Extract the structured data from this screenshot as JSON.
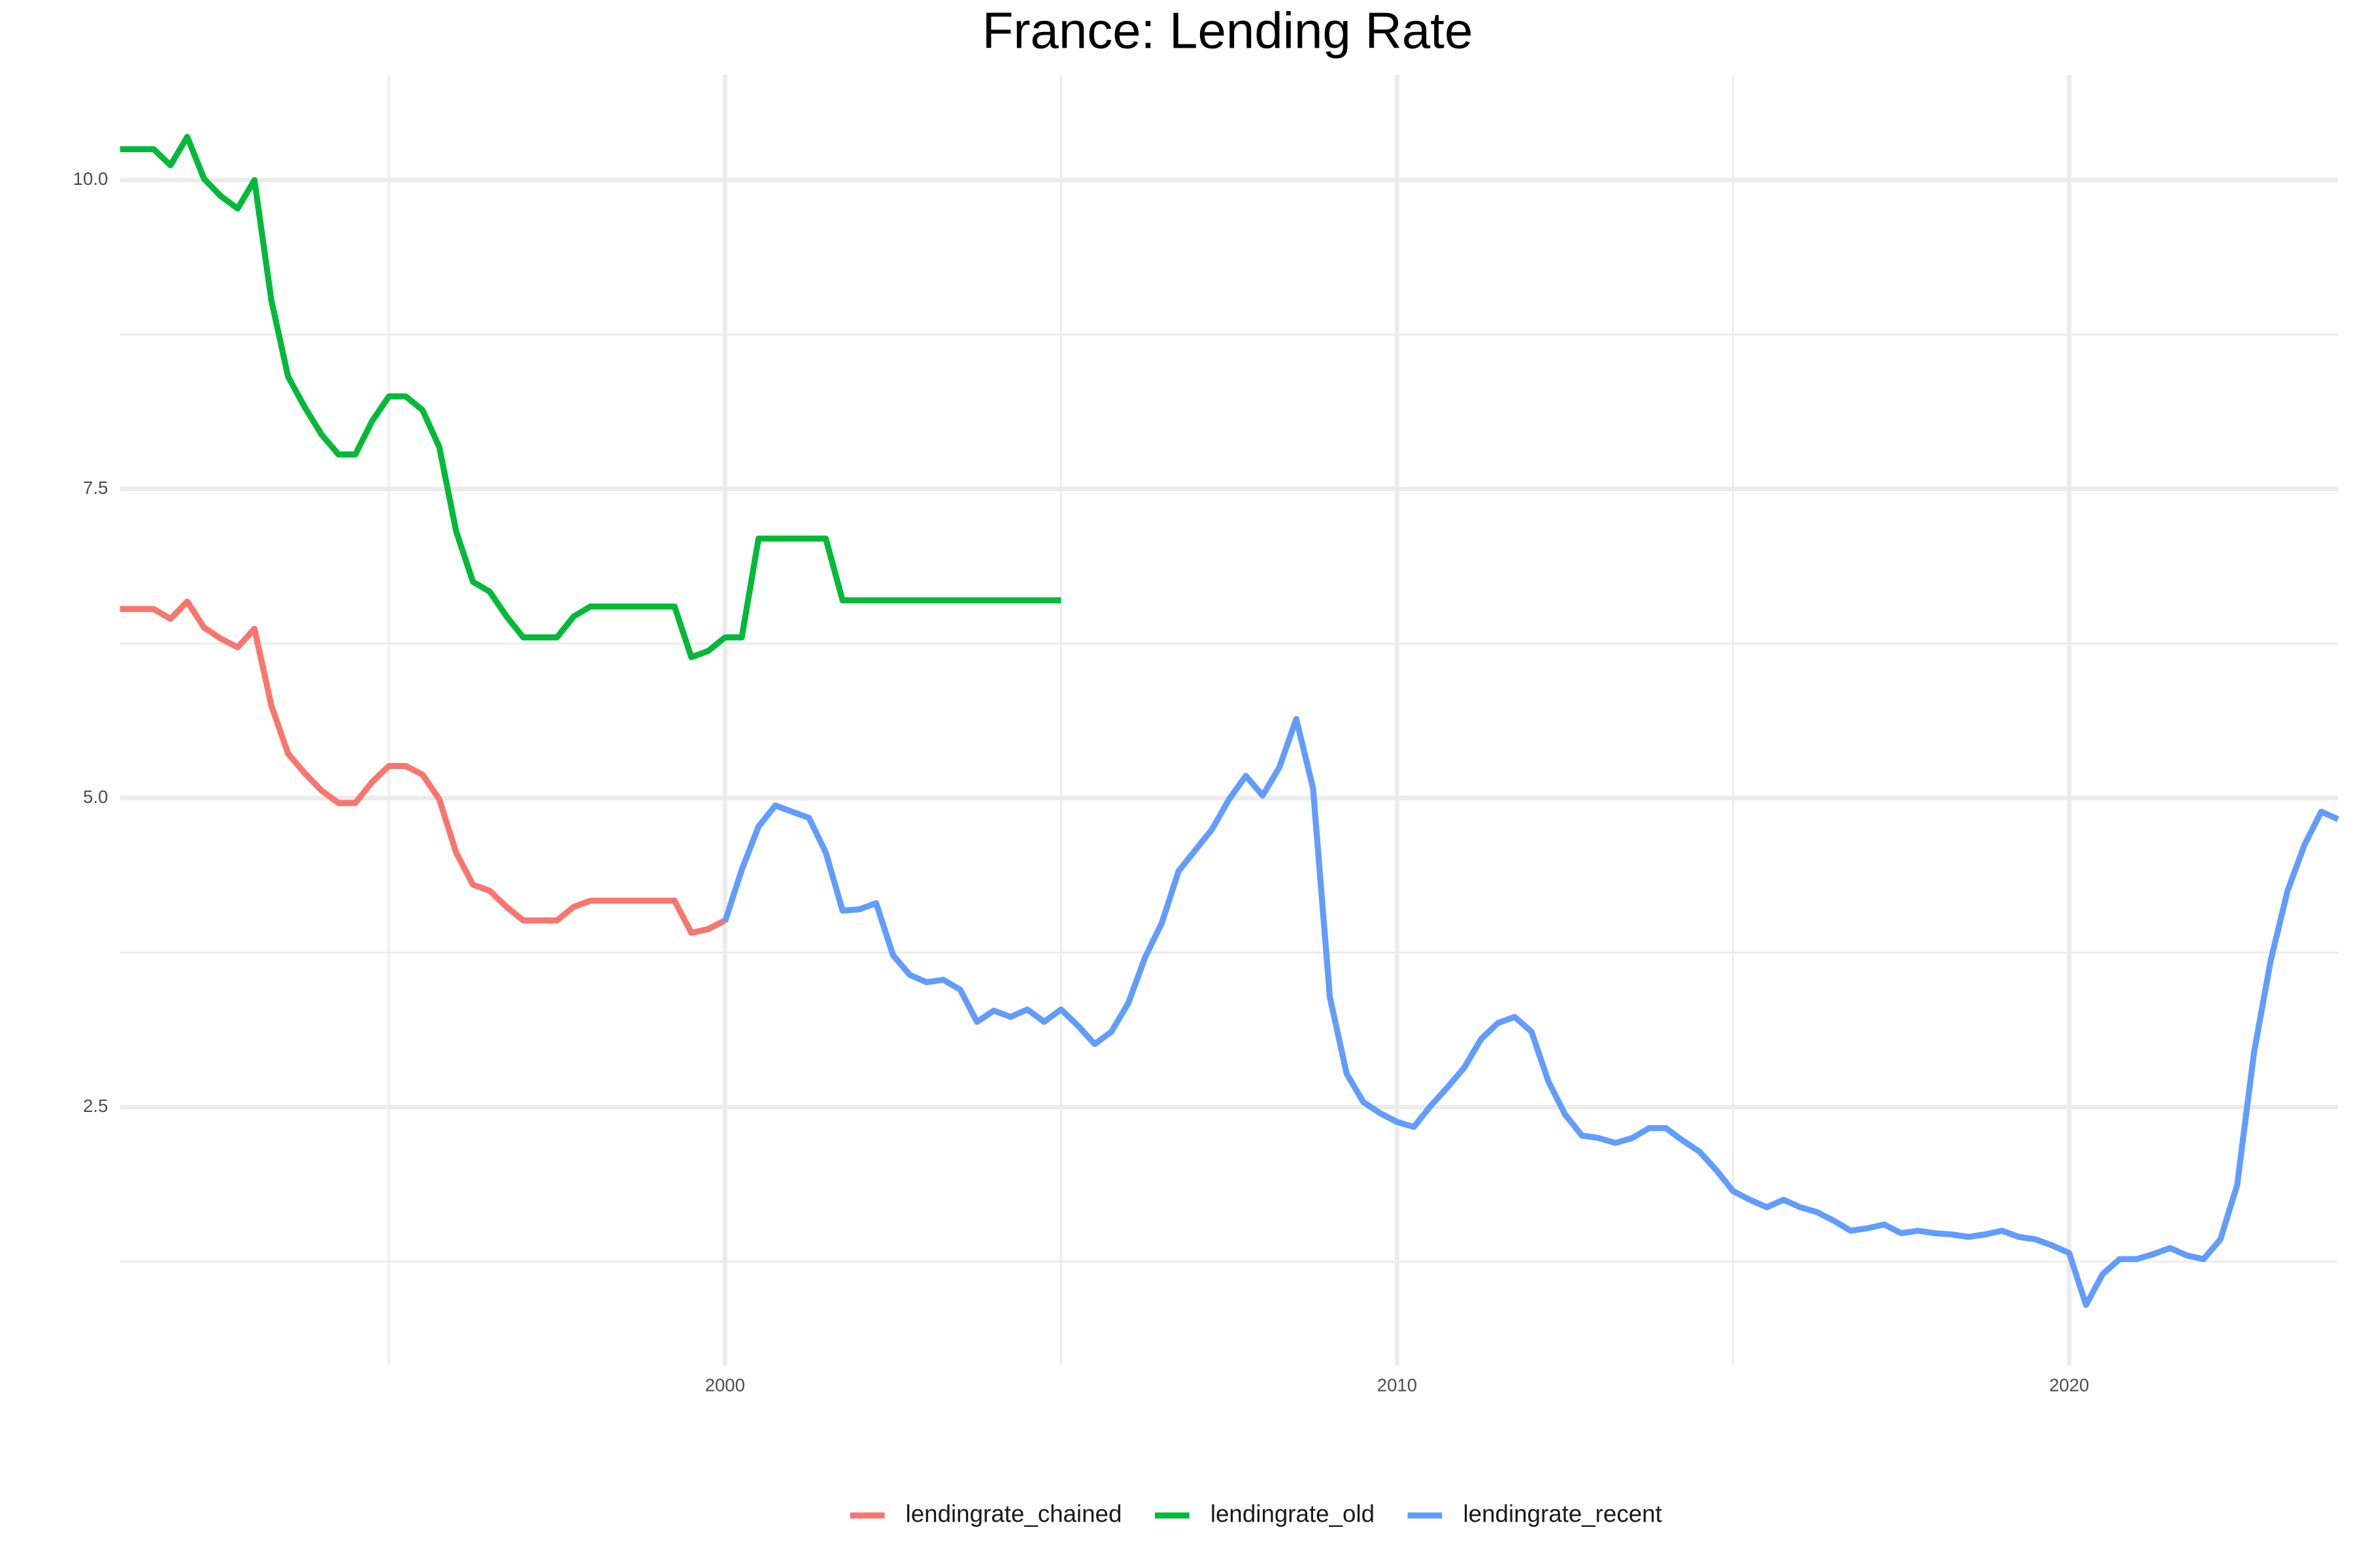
{
  "chart_data": {
    "type": "line",
    "title": "France: Lending Rate",
    "xlim": [
      1991,
      2024
    ],
    "xticks": [
      2000,
      2010,
      2020
    ],
    "xminor": [
      1995,
      2005,
      2015
    ],
    "ylim": [
      0.41,
      10.85
    ],
    "yticks": [
      {
        "value": 2.5,
        "label": "2.5"
      },
      {
        "value": 5,
        "label": "5.0"
      },
      {
        "value": 7.5,
        "label": "7.5"
      },
      {
        "value": 10,
        "label": "10.0"
      }
    ],
    "yminor": [
      1.25,
      3.75,
      6.25,
      8.75
    ],
    "grid": true,
    "legend": "bottom",
    "series": [
      {
        "name": "lendingrate_chained",
        "color": "#F8766D",
        "x": [
          1991,
          1991.25,
          1991.5,
          1991.75,
          1992,
          1992.25,
          1992.5,
          1992.75,
          1993,
          1993.25,
          1993.5,
          1993.75,
          1994,
          1994.25,
          1994.5,
          1994.75,
          1995,
          1995.25,
          1995.5,
          1995.75,
          1996,
          1996.25,
          1996.5,
          1996.75,
          1997,
          1997.25,
          1997.5,
          1997.75,
          1998,
          1998.25,
          1998.5,
          1998.75,
          1999,
          1999.25,
          1999.5,
          1999.75,
          2000
        ],
        "values": [
          6.53,
          6.53,
          6.53,
          6.45,
          6.59,
          6.38,
          6.29,
          6.22,
          6.37,
          5.75,
          5.36,
          5.2,
          5.06,
          4.96,
          4.96,
          5.13,
          5.26,
          5.26,
          5.19,
          4.99,
          4.56,
          4.3,
          4.25,
          4.12,
          4.01,
          4.01,
          4.01,
          4.12,
          4.17,
          4.17,
          4.17,
          4.17,
          4.17,
          4.17,
          3.91,
          3.94,
          4.01
        ]
      },
      {
        "name": "lendingrate_old",
        "color": "#00BA38",
        "x": [
          1991,
          1991.25,
          1991.5,
          1991.75,
          1992,
          1992.25,
          1992.5,
          1992.75,
          1993,
          1993.25,
          1993.5,
          1993.75,
          1994,
          1994.25,
          1994.5,
          1994.75,
          1995,
          1995.25,
          1995.5,
          1995.75,
          1996,
          1996.25,
          1996.5,
          1996.75,
          1997,
          1997.25,
          1997.5,
          1997.75,
          1998,
          1998.25,
          1998.5,
          1998.75,
          1999,
          1999.25,
          1999.5,
          1999.75,
          2000,
          2000.25,
          2000.5,
          2000.75,
          2001,
          2001.25,
          2001.5,
          2001.75,
          2002,
          2002.25,
          2002.5,
          2002.75,
          2003,
          2003.25,
          2003.5,
          2003.75,
          2004,
          2004.25,
          2004.5,
          2004.75,
          2005
        ],
        "values": [
          10.25,
          10.25,
          10.25,
          10.12,
          10.35,
          10.01,
          9.87,
          9.77,
          10,
          9.03,
          8.41,
          8.16,
          7.94,
          7.78,
          7.78,
          8.05,
          8.25,
          8.25,
          8.14,
          7.84,
          7.16,
          6.75,
          6.67,
          6.47,
          6.3,
          6.3,
          6.3,
          6.47,
          6.55,
          6.55,
          6.55,
          6.55,
          6.55,
          6.55,
          6.14,
          6.19,
          6.3,
          6.3,
          7.1,
          7.1,
          7.1,
          7.1,
          7.1,
          6.6,
          6.6,
          6.6,
          6.6,
          6.6,
          6.6,
          6.6,
          6.6,
          6.6,
          6.6,
          6.6,
          6.6,
          6.6,
          6.6
        ]
      },
      {
        "name": "lendingrate_recent",
        "color": "#619CFF",
        "x": [
          2000,
          2000.25,
          2000.5,
          2000.75,
          2001,
          2001.25,
          2001.5,
          2001.75,
          2002,
          2002.25,
          2002.5,
          2002.75,
          2003,
          2003.25,
          2003.5,
          2003.75,
          2004,
          2004.25,
          2004.5,
          2004.75,
          2005,
          2005.25,
          2005.5,
          2005.75,
          2006,
          2006.25,
          2006.5,
          2006.75,
          2007,
          2007.25,
          2007.5,
          2007.75,
          2008,
          2008.25,
          2008.5,
          2008.75,
          2009,
          2009.25,
          2009.5,
          2009.75,
          2010,
          2010.25,
          2010.5,
          2010.75,
          2011,
          2011.25,
          2011.5,
          2011.75,
          2012,
          2012.25,
          2012.5,
          2012.75,
          2013,
          2013.25,
          2013.5,
          2013.75,
          2014,
          2014.25,
          2014.5,
          2014.75,
          2015,
          2015.25,
          2015.5,
          2015.75,
          2016,
          2016.25,
          2016.5,
          2016.75,
          2017,
          2017.25,
          2017.5,
          2017.75,
          2018,
          2018.25,
          2018.5,
          2018.75,
          2019,
          2019.25,
          2019.5,
          2019.75,
          2020,
          2020.25,
          2020.5,
          2020.75,
          2021,
          2021.25,
          2021.5,
          2021.75,
          2022,
          2022.25,
          2022.5,
          2022.75,
          2023,
          2023.25,
          2023.5,
          2023.75,
          2024
        ],
        "values": [
          4.0,
          4.42,
          4.77,
          4.94,
          4.89,
          4.84,
          4.56,
          4.09,
          4.1,
          4.15,
          3.73,
          3.57,
          3.51,
          3.53,
          3.45,
          3.19,
          3.28,
          3.23,
          3.29,
          3.19,
          3.29,
          3.16,
          3.01,
          3.11,
          3.34,
          3.71,
          3.99,
          4.41,
          4.58,
          4.75,
          4.99,
          5.18,
          5.02,
          5.25,
          5.64,
          5.08,
          3.39,
          2.77,
          2.54,
          2.45,
          2.38,
          2.34,
          2.51,
          2.66,
          2.82,
          3.05,
          3.18,
          3.23,
          3.11,
          2.71,
          2.44,
          2.27,
          2.25,
          2.21,
          2.25,
          2.33,
          2.33,
          2.23,
          2.14,
          1.99,
          1.82,
          1.75,
          1.69,
          1.75,
          1.69,
          1.65,
          1.58,
          1.5,
          1.52,
          1.55,
          1.48,
          1.5,
          1.48,
          1.47,
          1.45,
          1.47,
          1.5,
          1.45,
          1.43,
          1.38,
          1.32,
          0.9,
          1.15,
          1.27,
          1.27,
          1.31,
          1.36,
          1.3,
          1.27,
          1.43,
          1.87,
          2.94,
          3.69,
          4.25,
          4.62,
          4.89,
          4.83
        ]
      }
    ]
  }
}
